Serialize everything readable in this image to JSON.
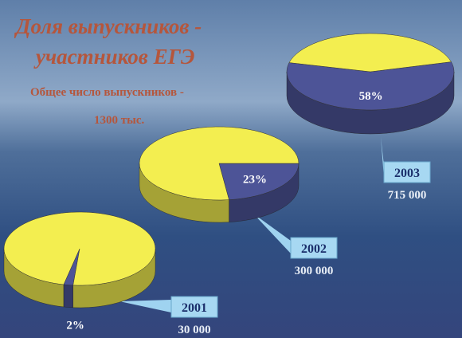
{
  "header": {
    "title": [
      "Доля выпускников -",
      "участников ЕГЭ"
    ],
    "subtitle": [
      "Общее число выпускников -",
      "1300 тыс."
    ]
  },
  "chart_data": [
    {
      "type": "pie",
      "title": "2001",
      "total": {
        "value": 30000,
        "label": "30 000"
      },
      "values": [
        2,
        98
      ],
      "value_labels": [
        "2%",
        null
      ],
      "colors": [
        "#4d5497",
        "#f3ee50"
      ]
    },
    {
      "type": "pie",
      "title": "2002",
      "total": {
        "value": 300000,
        "label": "300 000"
      },
      "values": [
        23,
        77
      ],
      "value_labels": [
        "23%",
        null
      ],
      "colors": [
        "#4d5497",
        "#f3ee50"
      ]
    },
    {
      "type": "pie",
      "title": "2003",
      "total": {
        "value": 715000,
        "label": "715 000"
      },
      "values": [
        58,
        42
      ],
      "value_labels": [
        "58%",
        null
      ],
      "colors": [
        "#4d5497",
        "#f3ee50"
      ]
    }
  ]
}
